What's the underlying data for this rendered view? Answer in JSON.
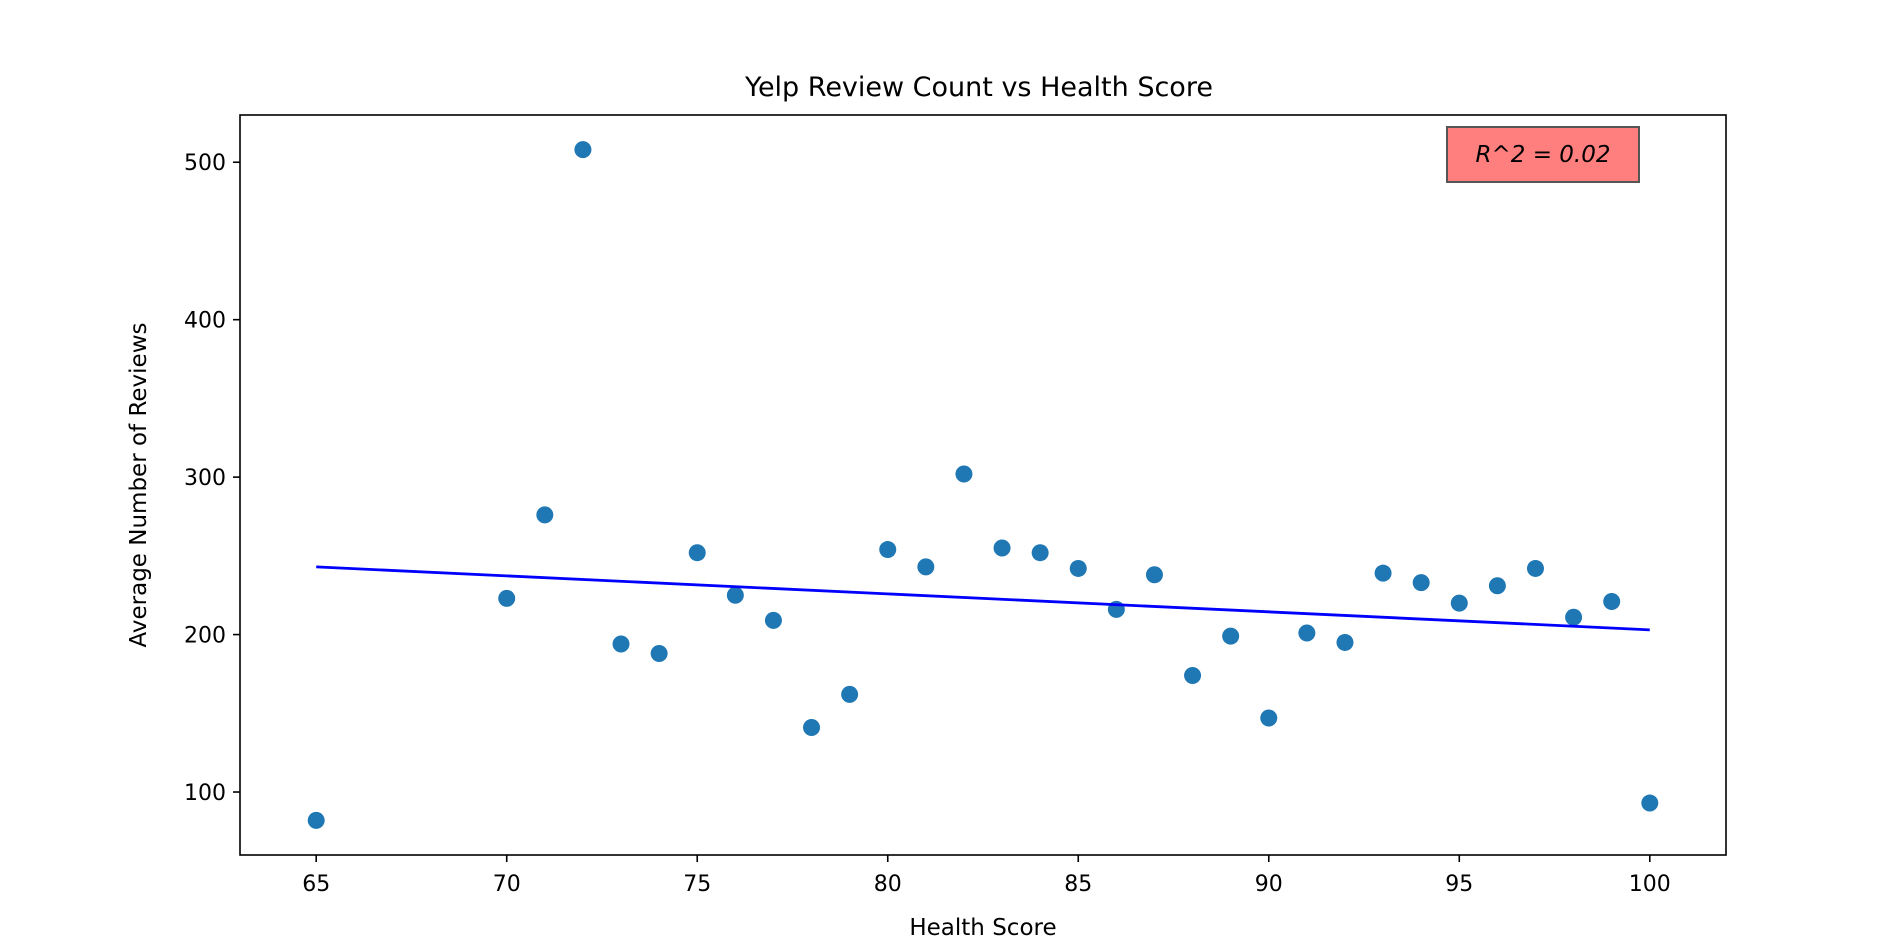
{
  "chart_data": {
    "type": "scatter",
    "title": "Yelp Review Count vs Health Score",
    "xlabel": "Health Score",
    "ylabel": "Average Number of Reviews",
    "xlim": [
      63,
      102
    ],
    "ylim": [
      60,
      530
    ],
    "xticks": [
      65,
      70,
      75,
      80,
      85,
      90,
      95,
      100
    ],
    "yticks": [
      100,
      200,
      300,
      400,
      500
    ],
    "grid": false,
    "point_color": "#1f77b4",
    "x": [
      65,
      70,
      71,
      72,
      73,
      74,
      75,
      76,
      77,
      78,
      79,
      80,
      81,
      82,
      83,
      84,
      85,
      86,
      87,
      88,
      89,
      90,
      91,
      92,
      93,
      94,
      95,
      96,
      97,
      98,
      99,
      100
    ],
    "y": [
      82,
      223,
      276,
      508,
      194,
      188,
      252,
      225,
      209,
      141,
      162,
      254,
      243,
      302,
      255,
      252,
      242,
      216,
      238,
      174,
      199,
      147,
      201,
      195,
      239,
      233,
      220,
      231,
      242,
      211,
      221,
      93
    ],
    "trend_line": {
      "color": "#0000ff",
      "x": [
        65,
        100
      ],
      "y": [
        243,
        203
      ]
    },
    "annotation": {
      "text": "R^2 = 0.02",
      "background": "#ff7f7f",
      "border": "#555555"
    }
  }
}
